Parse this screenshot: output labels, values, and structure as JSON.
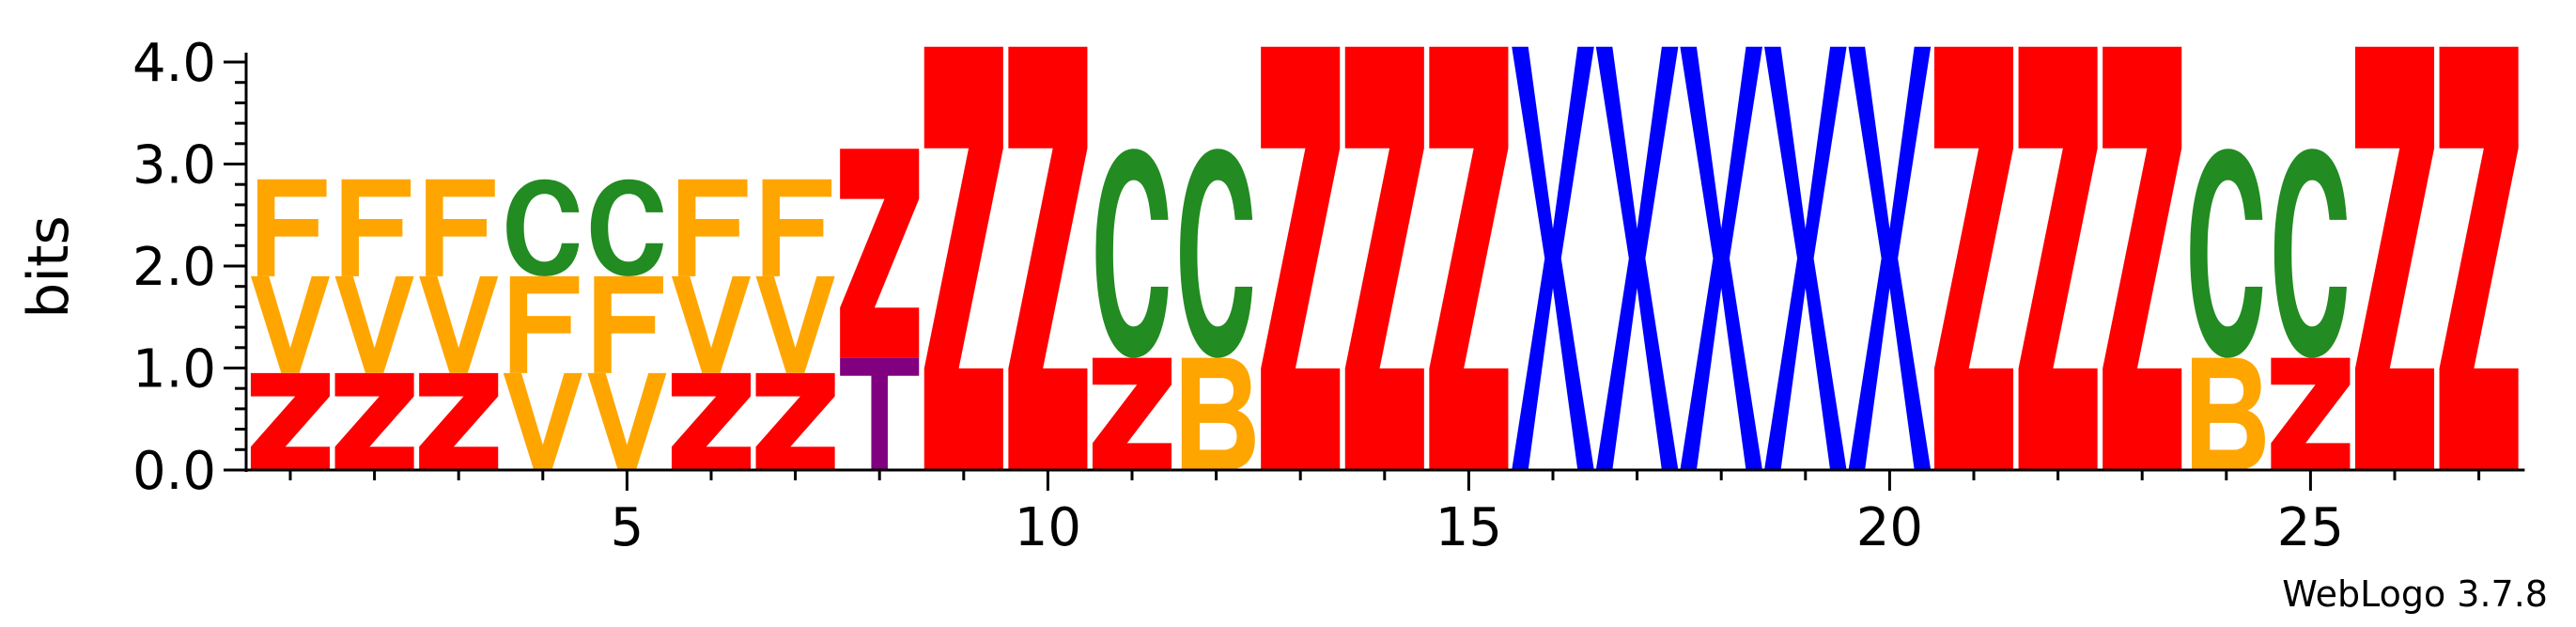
{
  "chart_data": {
    "type": "sequence_logo",
    "ylabel": "bits",
    "ylim": [
      0,
      4.0
    ],
    "yticks": [
      "0.0",
      "1.0",
      "2.0",
      "3.0",
      "4.0"
    ],
    "xticks": [
      "5",
      "10",
      "15",
      "20",
      "25"
    ],
    "xtick_values": [
      5,
      10,
      15,
      20,
      25
    ],
    "num_positions": 27,
    "credit": "WebLogo 3.7.8",
    "colors": {
      "Z": "#ff0000",
      "F": "#ffa500",
      "V": "#ffa500",
      "B": "#ffa500",
      "C": "#228b22",
      "X": "#0000ff",
      "T": "#800080"
    },
    "positions": [
      {
        "pos": 1,
        "stack": [
          {
            "letter": "Z",
            "height": 0.95
          },
          {
            "letter": "V",
            "height": 0.95
          },
          {
            "letter": "F",
            "height": 0.95
          }
        ]
      },
      {
        "pos": 2,
        "stack": [
          {
            "letter": "Z",
            "height": 0.95
          },
          {
            "letter": "V",
            "height": 0.95
          },
          {
            "letter": "F",
            "height": 0.95
          }
        ]
      },
      {
        "pos": 3,
        "stack": [
          {
            "letter": "Z",
            "height": 0.95
          },
          {
            "letter": "V",
            "height": 0.95
          },
          {
            "letter": "F",
            "height": 0.95
          }
        ]
      },
      {
        "pos": 4,
        "stack": [
          {
            "letter": "V",
            "height": 0.95
          },
          {
            "letter": "F",
            "height": 0.95
          },
          {
            "letter": "C",
            "height": 0.95
          }
        ]
      },
      {
        "pos": 5,
        "stack": [
          {
            "letter": "V",
            "height": 0.95
          },
          {
            "letter": "F",
            "height": 0.95
          },
          {
            "letter": "C",
            "height": 0.95
          }
        ]
      },
      {
        "pos": 6,
        "stack": [
          {
            "letter": "Z",
            "height": 0.95
          },
          {
            "letter": "V",
            "height": 0.95
          },
          {
            "letter": "F",
            "height": 0.95
          }
        ]
      },
      {
        "pos": 7,
        "stack": [
          {
            "letter": "Z",
            "height": 0.95
          },
          {
            "letter": "V",
            "height": 0.95
          },
          {
            "letter": "F",
            "height": 0.95
          }
        ]
      },
      {
        "pos": 8,
        "stack": [
          {
            "letter": "T",
            "height": 1.1
          },
          {
            "letter": "Z",
            "height": 2.05
          }
        ]
      },
      {
        "pos": 9,
        "stack": [
          {
            "letter": "Z",
            "height": 4.15
          }
        ]
      },
      {
        "pos": 10,
        "stack": [
          {
            "letter": "Z",
            "height": 4.15
          }
        ]
      },
      {
        "pos": 11,
        "stack": [
          {
            "letter": "Z",
            "height": 1.1
          },
          {
            "letter": "C",
            "height": 2.05
          }
        ]
      },
      {
        "pos": 12,
        "stack": [
          {
            "letter": "B",
            "height": 1.1
          },
          {
            "letter": "C",
            "height": 2.05
          }
        ]
      },
      {
        "pos": 13,
        "stack": [
          {
            "letter": "Z",
            "height": 4.15
          }
        ]
      },
      {
        "pos": 14,
        "stack": [
          {
            "letter": "Z",
            "height": 4.15
          }
        ]
      },
      {
        "pos": 15,
        "stack": [
          {
            "letter": "Z",
            "height": 4.15
          }
        ]
      },
      {
        "pos": 16,
        "stack": [
          {
            "letter": "X",
            "height": 4.15
          }
        ]
      },
      {
        "pos": 17,
        "stack": [
          {
            "letter": "X",
            "height": 4.15
          }
        ]
      },
      {
        "pos": 18,
        "stack": [
          {
            "letter": "X",
            "height": 4.15
          }
        ]
      },
      {
        "pos": 19,
        "stack": [
          {
            "letter": "X",
            "height": 4.15
          }
        ]
      },
      {
        "pos": 20,
        "stack": [
          {
            "letter": "X",
            "height": 4.15
          }
        ]
      },
      {
        "pos": 21,
        "stack": [
          {
            "letter": "Z",
            "height": 4.15
          }
        ]
      },
      {
        "pos": 22,
        "stack": [
          {
            "letter": "Z",
            "height": 4.15
          }
        ]
      },
      {
        "pos": 23,
        "stack": [
          {
            "letter": "Z",
            "height": 4.15
          }
        ]
      },
      {
        "pos": 24,
        "stack": [
          {
            "letter": "B",
            "height": 1.1
          },
          {
            "letter": "C",
            "height": 2.05
          }
        ]
      },
      {
        "pos": 25,
        "stack": [
          {
            "letter": "Z",
            "height": 1.1
          },
          {
            "letter": "C",
            "height": 2.05
          }
        ]
      },
      {
        "pos": 26,
        "stack": [
          {
            "letter": "Z",
            "height": 4.15
          }
        ]
      },
      {
        "pos": 27,
        "stack": [
          {
            "letter": "Z",
            "height": 4.15
          }
        ]
      }
    ]
  }
}
